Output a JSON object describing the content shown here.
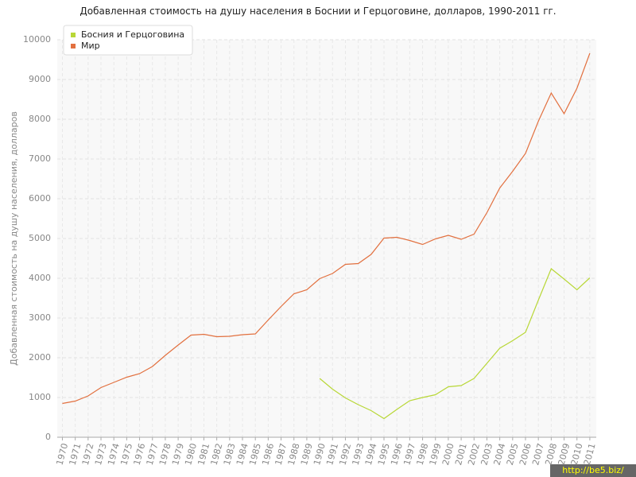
{
  "chart_data": {
    "type": "line",
    "title": "Добавленная стоимость на душу населения в Боснии и Герцоговине, долларов, 1990-2011 гг.",
    "y_label": "Добавленная стоимость на душу населения, долларов",
    "watermark": "http://be5.biz/",
    "x": [
      1970,
      1971,
      1972,
      1973,
      1974,
      1975,
      1976,
      1977,
      1978,
      1979,
      1980,
      1981,
      1982,
      1983,
      1984,
      1985,
      1986,
      1987,
      1988,
      1989,
      1990,
      1991,
      1992,
      1993,
      1994,
      1995,
      1996,
      1997,
      1998,
      1999,
      2000,
      2001,
      2002,
      2003,
      2004,
      2005,
      2006,
      2007,
      2008,
      2009,
      2010,
      2011
    ],
    "xlim": [
      1969.6,
      2011.5
    ],
    "ylim": [
      0,
      10000
    ],
    "yticks": [
      0,
      1000,
      2000,
      3000,
      4000,
      5000,
      6000,
      7000,
      8000,
      9000,
      10000
    ],
    "grid": true,
    "legend": "top-left",
    "series": [
      {
        "name": "Босния и Герцоговина",
        "color": "#b8d736",
        "values": [
          null,
          null,
          null,
          null,
          null,
          null,
          null,
          null,
          null,
          null,
          null,
          null,
          null,
          null,
          null,
          null,
          null,
          null,
          null,
          null,
          1480,
          1210,
          990,
          820,
          670,
          470,
          700,
          920,
          1000,
          1070,
          1270,
          1300,
          1480,
          1860,
          2240,
          2430,
          2640,
          3450,
          4240,
          3980,
          3710,
          4010
        ]
      },
      {
        "name": "Мир",
        "color": "#e2703f",
        "values": [
          850,
          910,
          1040,
          1250,
          1380,
          1510,
          1600,
          1780,
          2060,
          2320,
          2570,
          2590,
          2530,
          2540,
          2580,
          2600,
          2950,
          3290,
          3610,
          3710,
          3990,
          4120,
          4350,
          4370,
          4600,
          5010,
          5030,
          4950,
          4850,
          4990,
          5080,
          4980,
          5110,
          5650,
          6270,
          6690,
          7140,
          7950,
          8660,
          8140,
          8780,
          9660
        ]
      }
    ]
  }
}
